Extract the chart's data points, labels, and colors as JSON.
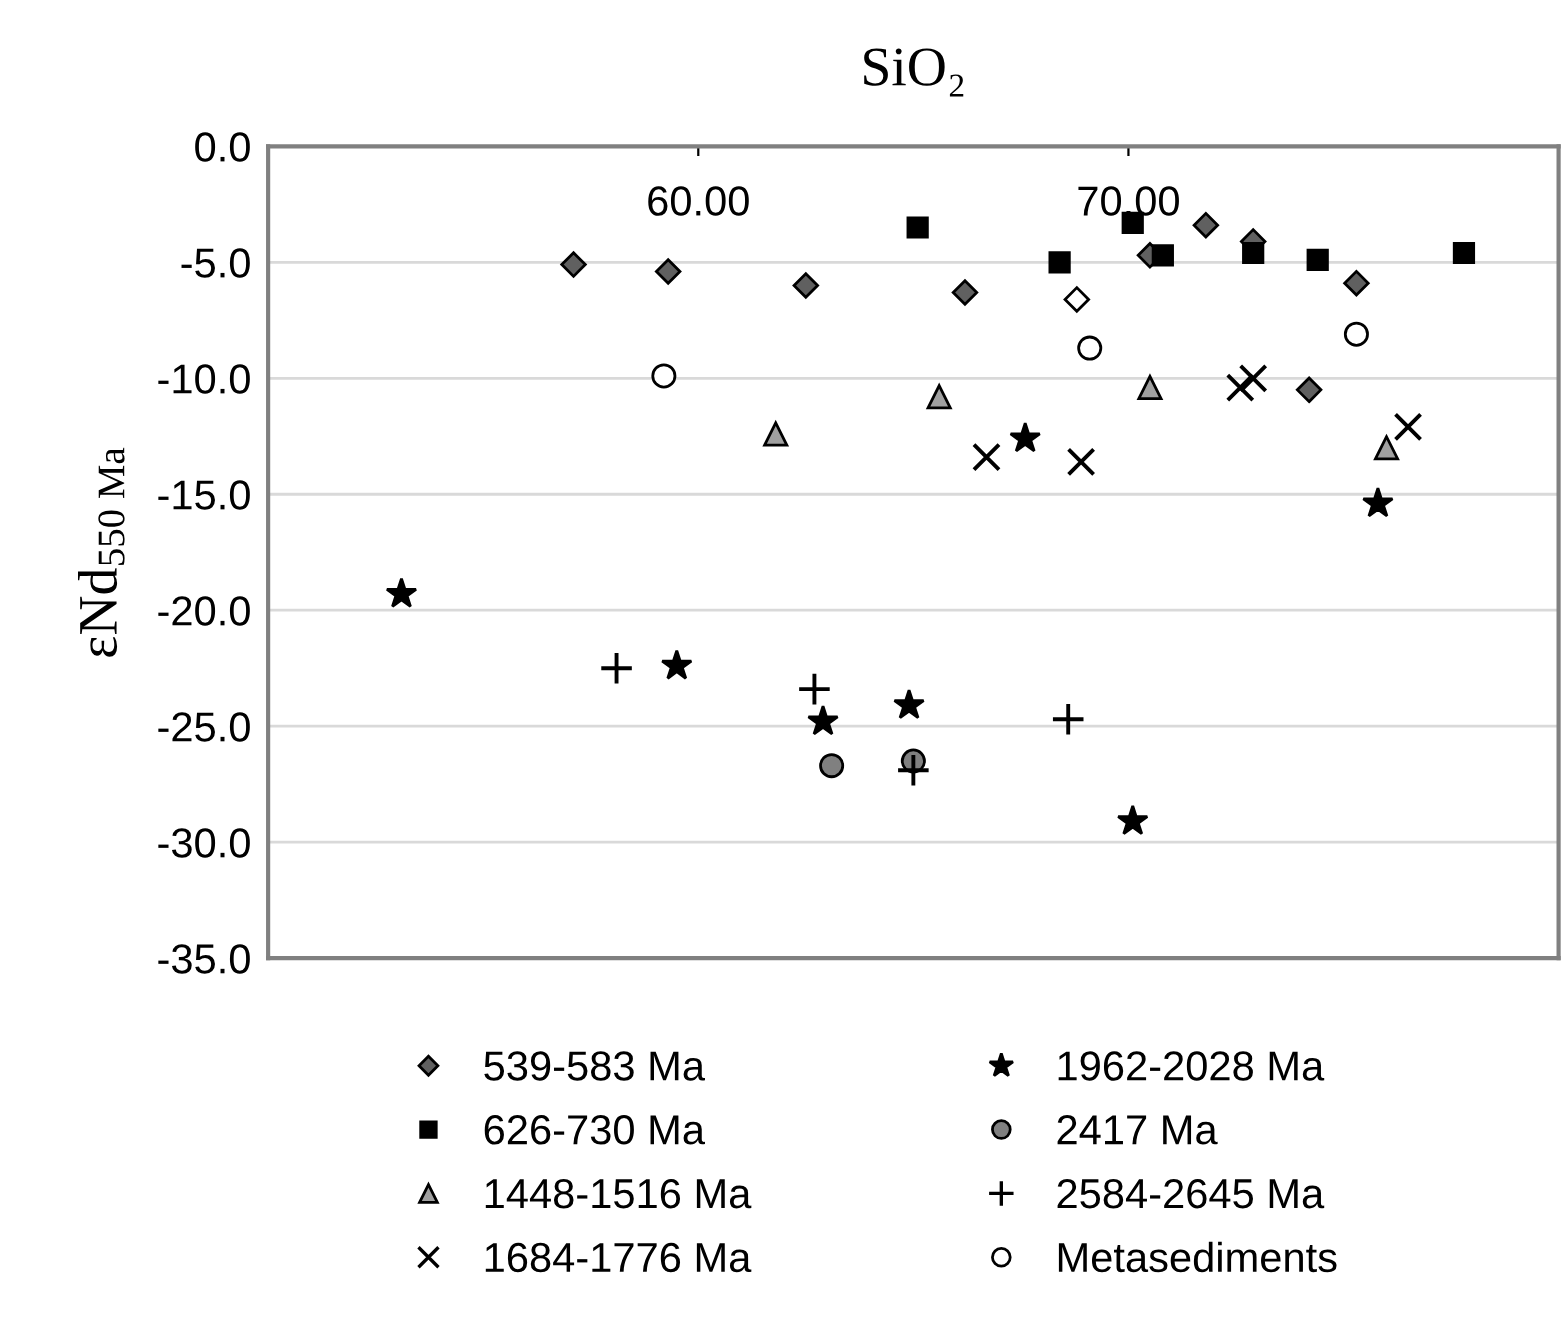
{
  "chart_data": {
    "type": "scatter",
    "title": "SiO₂",
    "ylabel": "εNd$_{550 Ma}$",
    "xlim": [
      50,
      80
    ],
    "xticks": [
      {
        "value": 60,
        "label": "60.00"
      },
      {
        "value": 70,
        "label": "70.00"
      }
    ],
    "ylim": [
      -35,
      0
    ],
    "yticks": [
      {
        "value": 0,
        "label": "0.0"
      },
      {
        "value": -5,
        "label": "-5.0"
      },
      {
        "value": -10,
        "label": "-10.0"
      },
      {
        "value": -15,
        "label": "-15.0"
      },
      {
        "value": -20,
        "label": "-20.0"
      },
      {
        "value": -25,
        "label": "-25.0"
      },
      {
        "value": -30,
        "label": "-30.0"
      },
      {
        "value": -35,
        "label": "-35.0"
      }
    ],
    "grid": "y",
    "legend": "bottom",
    "series": [
      {
        "name": "539-583 Ma",
        "marker": "diamond",
        "color": "#606060",
        "colors": [
          "#606060",
          "#606060",
          "#606060",
          "#606060",
          "#ffffff",
          "#606060",
          "#606060",
          "#606060",
          "#606060",
          "#606060"
        ],
        "x": [
          57.1,
          59.3,
          62.5,
          66.2,
          68.8,
          70.5,
          71.8,
          72.9,
          74.2,
          75.3
        ],
        "values": [
          -5.1,
          -5.4,
          -6.0,
          -6.3,
          -6.6,
          -4.7,
          -3.4,
          -4.1,
          -10.5,
          -5.9
        ]
      },
      {
        "name": "626-730 Ma",
        "marker": "square",
        "color": "#000000",
        "x": [
          65.1,
          68.4,
          70.1,
          70.8,
          72.9,
          74.4,
          77.8
        ],
        "values": [
          -3.5,
          -5.0,
          -3.3,
          -4.7,
          -4.6,
          -4.9,
          -4.6
        ]
      },
      {
        "name": "1448-1516 Ma",
        "marker": "triangle",
        "color": "#a0a0a0",
        "x": [
          61.8,
          65.6,
          70.5,
          76.0
        ],
        "values": [
          -12.4,
          -10.8,
          -10.4,
          -13.0
        ]
      },
      {
        "name": "1684-1776 Ma",
        "marker": "cross",
        "color": "#000000",
        "x": [
          66.7,
          68.9,
          72.6,
          72.9,
          76.5
        ],
        "values": [
          -13.4,
          -13.6,
          -10.4,
          -10.0,
          -12.1
        ]
      },
      {
        "name": "1962-2028 Ma",
        "marker": "star",
        "color": "#000000",
        "x": [
          53.1,
          59.5,
          62.9,
          64.9,
          67.6,
          70.1,
          75.8
        ],
        "values": [
          -19.3,
          -22.4,
          -24.8,
          -24.1,
          -12.6,
          -29.1,
          -15.4
        ]
      },
      {
        "name": "2417 Ma",
        "marker": "circle",
        "color": "#808080",
        "x": [
          63.1,
          65.0
        ],
        "values": [
          -26.7,
          -26.5
        ]
      },
      {
        "name": "2584-2645 Ma",
        "marker": "plus",
        "color": "#000000",
        "x": [
          58.1,
          62.7,
          65.0,
          68.6
        ],
        "values": [
          -22.5,
          -23.4,
          -26.9,
          -24.7
        ]
      },
      {
        "name": "Metasediments",
        "marker": "circle",
        "color": "#ffffff",
        "x": [
          59.2,
          69.1,
          75.3
        ],
        "values": [
          -9.9,
          -8.7,
          -8.1
        ]
      }
    ]
  }
}
